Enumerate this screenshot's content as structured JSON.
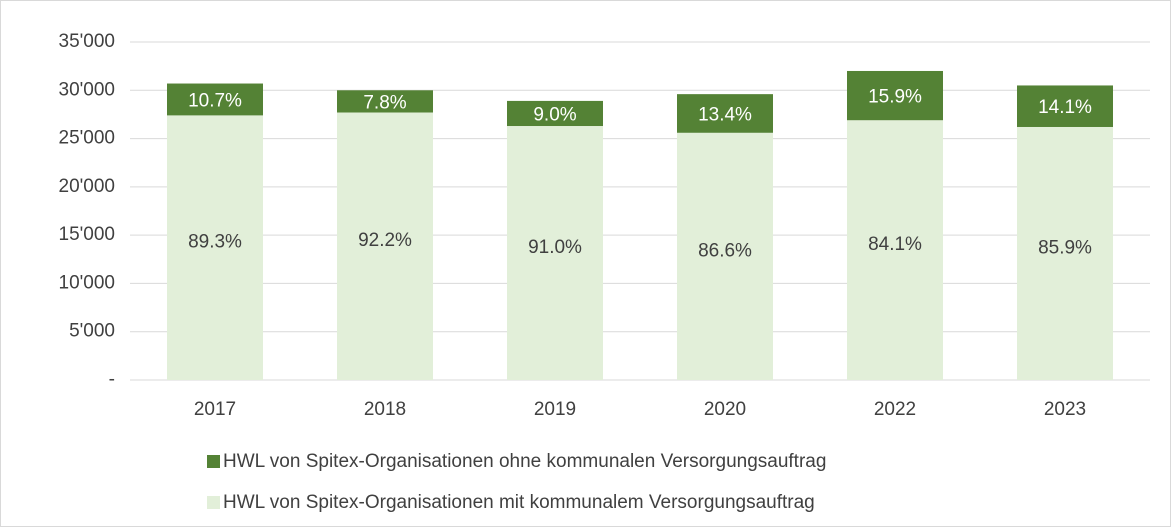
{
  "chart_data": {
    "type": "stacked_bar",
    "categories": [
      "2017",
      "2018",
      "2019",
      "2020",
      "2022",
      "2023"
    ],
    "series": [
      {
        "name": "HWL von Spitex-Organisationen mit kommunalem Versorgungsauftrag",
        "color": "#e2efd9",
        "values": [
          27400,
          27700,
          26300,
          25600,
          26900,
          26200
        ],
        "data_labels": [
          "89.3%",
          "92.2%",
          "91.0%",
          "86.6%",
          "84.1%",
          "85.9%"
        ]
      },
      {
        "name": "HWL von Spitex-Organisationen ohne kommunalen Versorgungsauftrag",
        "color": "#548235",
        "values": [
          3300,
          2300,
          2600,
          4000,
          5100,
          4300
        ],
        "data_labels": [
          "10.7%",
          "7.8%",
          "9.0%",
          "13.4%",
          "15.9%",
          "14.1%"
        ]
      }
    ],
    "ylim": [
      0,
      35000
    ],
    "yticks": [
      {
        "value": 0,
        "label": "-"
      },
      {
        "value": 5000,
        "label": "5'000"
      },
      {
        "value": 10000,
        "label": "10'000"
      },
      {
        "value": 15000,
        "label": "15'000"
      },
      {
        "value": 20000,
        "label": "20'000"
      },
      {
        "value": 25000,
        "label": "25'000"
      },
      {
        "value": 30000,
        "label": "30'000"
      },
      {
        "value": 35000,
        "label": "35'000"
      }
    ],
    "grid": true
  }
}
